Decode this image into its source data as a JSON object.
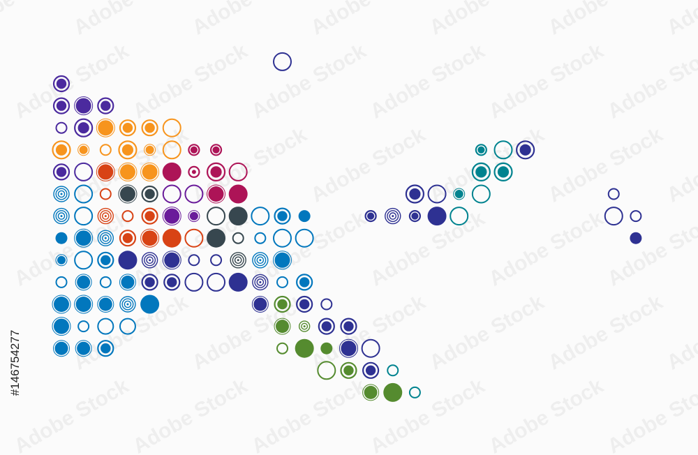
{
  "watermark": "Adobe Stock",
  "stock_id": "#146754277",
  "palette": {
    "P": "#4b2a9e",
    "O": "#f7941d",
    "M": "#ad1457",
    "R": "#d84315",
    "D": "#37474f",
    "B": "#0277bd",
    "V": "#6a1b9a",
    "N": "#2e3192",
    "G": "#558b2f",
    "T": "#00838f"
  },
  "background": "#fbfbfb"
}
